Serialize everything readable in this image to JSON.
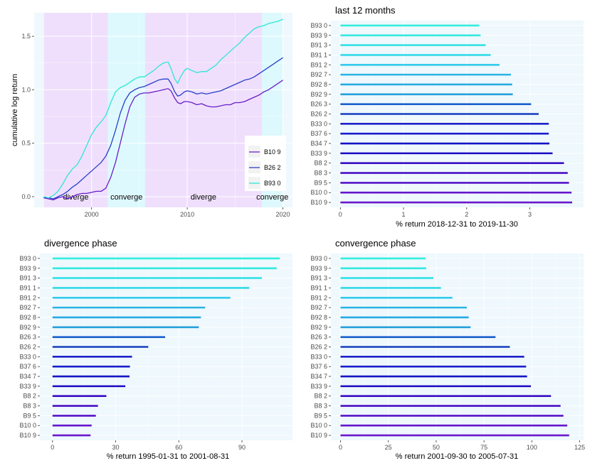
{
  "chart_data": [
    {
      "type": "line",
      "title": "",
      "xlabel": "",
      "ylabel": "cumulative log return",
      "xlim": [
        1994.0,
        2021.0
      ],
      "ylim": [
        -0.1,
        1.72
      ],
      "x_ticks": [
        2000,
        2010,
        2020
      ],
      "x_tick_labels": [
        "2000",
        "2010",
        "2020"
      ],
      "y_ticks": [
        0.0,
        0.5,
        1.0,
        1.5
      ],
      "y_tick_labels": [
        "0.0",
        "0.5",
        "1.0",
        "1.5"
      ],
      "phases": [
        {
          "label": "diverge",
          "start": 1995.0,
          "end": 2001.7,
          "color": "#efdffc"
        },
        {
          "label": "converge",
          "start": 2001.7,
          "end": 2005.6,
          "color": "#ddf9fd"
        },
        {
          "label": "diverge",
          "start": 2005.6,
          "end": 2017.8,
          "color": "#efdffc"
        },
        {
          "label": "converge",
          "start": 2017.8,
          "end": 2020.0,
          "color": "#ddf9fd"
        }
      ],
      "legend_position": "bottom-right",
      "series": [
        {
          "name": "B10 9",
          "color": "#6a1fc9",
          "x": [
            1995.0,
            1995.5,
            1996.0,
            1996.5,
            1997.0,
            1997.5,
            1998.0,
            1998.5,
            1999.0,
            1999.5,
            2000.0,
            2000.5,
            2001.0,
            2001.5,
            2002.0,
            2002.5,
            2003.0,
            2003.5,
            2004.0,
            2004.5,
            2005.0,
            2005.5,
            2006.0,
            2006.5,
            2007.0,
            2007.5,
            2008.0,
            2008.3,
            2008.7,
            2009.0,
            2009.3,
            2009.7,
            2010.0,
            2010.5,
            2011.0,
            2011.5,
            2012.0,
            2012.5,
            2013.0,
            2013.5,
            2014.0,
            2014.5,
            2015.0,
            2015.5,
            2016.0,
            2016.5,
            2017.0,
            2017.5,
            2018.0,
            2018.5,
            2019.0,
            2019.5,
            2020.0
          ],
          "y": [
            -0.01,
            -0.02,
            -0.03,
            -0.01,
            0.0,
            -0.02,
            0.0,
            0.02,
            0.03,
            0.03,
            0.04,
            0.05,
            0.05,
            0.08,
            0.18,
            0.32,
            0.5,
            0.68,
            0.84,
            0.93,
            0.96,
            0.97,
            0.97,
            0.98,
            0.99,
            1.0,
            1.01,
            0.99,
            0.92,
            0.88,
            0.87,
            0.89,
            0.89,
            0.88,
            0.86,
            0.87,
            0.85,
            0.84,
            0.84,
            0.85,
            0.86,
            0.86,
            0.88,
            0.88,
            0.89,
            0.91,
            0.93,
            0.95,
            0.98,
            1.0,
            1.03,
            1.06,
            1.09
          ]
        },
        {
          "name": "B26 2",
          "color": "#2940c8",
          "x": [
            1995.0,
            1995.5,
            1996.0,
            1996.5,
            1997.0,
            1997.5,
            1998.0,
            1998.5,
            1999.0,
            1999.5,
            2000.0,
            2000.5,
            2001.0,
            2001.5,
            2002.0,
            2002.5,
            2003.0,
            2003.5,
            2004.0,
            2004.5,
            2005.0,
            2005.5,
            2006.0,
            2006.5,
            2007.0,
            2007.5,
            2008.0,
            2008.3,
            2008.7,
            2009.0,
            2009.3,
            2009.7,
            2010.0,
            2010.5,
            2011.0,
            2011.5,
            2012.0,
            2012.5,
            2013.0,
            2013.5,
            2014.0,
            2014.5,
            2015.0,
            2015.5,
            2016.0,
            2016.5,
            2017.0,
            2017.5,
            2018.0,
            2018.5,
            2019.0,
            2019.5,
            2020.0
          ],
          "y": [
            -0.01,
            -0.01,
            -0.02,
            0.0,
            0.02,
            0.05,
            0.09,
            0.12,
            0.16,
            0.2,
            0.24,
            0.28,
            0.32,
            0.38,
            0.48,
            0.62,
            0.78,
            0.9,
            0.97,
            1.0,
            1.02,
            1.03,
            1.05,
            1.07,
            1.09,
            1.1,
            1.1,
            1.06,
            0.98,
            0.94,
            0.95,
            0.98,
            0.99,
            0.98,
            0.96,
            0.97,
            0.96,
            0.97,
            0.98,
            0.99,
            1.01,
            1.03,
            1.05,
            1.07,
            1.09,
            1.1,
            1.12,
            1.15,
            1.18,
            1.21,
            1.24,
            1.27,
            1.3
          ]
        },
        {
          "name": "B93 0",
          "color": "#2ee6d6",
          "x": [
            1995.0,
            1995.5,
            1996.0,
            1996.5,
            1997.0,
            1997.5,
            1998.0,
            1998.5,
            1999.0,
            1999.5,
            2000.0,
            2000.5,
            2001.0,
            2001.5,
            2002.0,
            2002.5,
            2003.0,
            2003.5,
            2004.0,
            2004.5,
            2005.0,
            2005.5,
            2006.0,
            2006.5,
            2007.0,
            2007.5,
            2008.0,
            2008.3,
            2008.7,
            2009.0,
            2009.3,
            2009.7,
            2010.0,
            2010.5,
            2011.0,
            2011.5,
            2012.0,
            2012.5,
            2013.0,
            2013.5,
            2014.0,
            2014.5,
            2015.0,
            2015.5,
            2016.0,
            2016.5,
            2017.0,
            2017.5,
            2018.0,
            2018.5,
            2019.0,
            2019.5,
            2020.0
          ],
          "y": [
            0.0,
            -0.01,
            0.01,
            0.05,
            0.12,
            0.2,
            0.26,
            0.3,
            0.38,
            0.48,
            0.58,
            0.65,
            0.7,
            0.76,
            0.88,
            0.98,
            1.02,
            1.04,
            1.07,
            1.1,
            1.12,
            1.12,
            1.15,
            1.18,
            1.22,
            1.25,
            1.26,
            1.2,
            1.1,
            1.06,
            1.12,
            1.18,
            1.2,
            1.18,
            1.16,
            1.17,
            1.17,
            1.2,
            1.23,
            1.28,
            1.32,
            1.36,
            1.4,
            1.44,
            1.49,
            1.53,
            1.57,
            1.59,
            1.6,
            1.62,
            1.63,
            1.64,
            1.66
          ]
        }
      ]
    },
    {
      "type": "bar",
      "orientation": "horizontal",
      "title": "last 12 months",
      "xlabel": "% return 2018-12-31 to 2019-11-30",
      "xlim": [
        -0.15,
        3.85
      ],
      "x_ticks": [
        0,
        1,
        2,
        3
      ],
      "x_tick_labels": [
        "0",
        "1",
        "2",
        "3"
      ],
      "categories": [
        "B93 0",
        "B93 9",
        "B91 3",
        "B91 1",
        "B91 2",
        "B92 7",
        "B92 8",
        "B92 9",
        "B26 3",
        "B26 2",
        "B33 0",
        "B37 6",
        "B34 7",
        "B33 9",
        "B8 2",
        "B8 3",
        "B9 5",
        "B10 0",
        "B10 9"
      ],
      "values": [
        2.2,
        2.22,
        2.3,
        2.38,
        2.52,
        2.7,
        2.72,
        2.73,
        3.02,
        3.14,
        3.3,
        3.3,
        3.31,
        3.36,
        3.54,
        3.6,
        3.62,
        3.66,
        3.67
      ],
      "colors": [
        "#33eedd",
        "#33eadf",
        "#33e2e6",
        "#33daea",
        "#32ccec",
        "#2ab4e4",
        "#27aae0",
        "#259fdc",
        "#1a60cc",
        "#153ebd",
        "#1c22c8",
        "#1a1ecc",
        "#1514c4",
        "#1a0ac0",
        "#3a0ec2",
        "#4a10c4",
        "#5814c8",
        "#6616cc",
        "#6a18cc"
      ]
    },
    {
      "type": "bar",
      "orientation": "horizontal",
      "title": "divergence phase",
      "xlabel": "% return 1995-01-31 to 2001-08-31",
      "xlim": [
        -6,
        114
      ],
      "x_ticks": [
        0,
        30,
        60,
        90
      ],
      "x_tick_labels": [
        "0",
        "30",
        "60",
        "90"
      ],
      "categories": [
        "B93 0",
        "B93 9",
        "B91 3",
        "B91 1",
        "B91 2",
        "B92 7",
        "B92 8",
        "B92 9",
        "B26 3",
        "B26 2",
        "B33 0",
        "B37 6",
        "B34 7",
        "B33 9",
        "B8 2",
        "B8 3",
        "B9 5",
        "B10 0",
        "B10 9"
      ],
      "values": [
        108,
        106.5,
        99.5,
        93.5,
        84.5,
        72.5,
        70.5,
        69.5,
        53.5,
        45.5,
        37.8,
        36.8,
        36.6,
        34.6,
        25.6,
        21.6,
        20.6,
        18.6,
        18.1
      ],
      "colors": [
        "#33eedd",
        "#33eadf",
        "#33e2e6",
        "#33daea",
        "#32ccec",
        "#2ab4e4",
        "#27aae0",
        "#259fdc",
        "#1a60cc",
        "#153ebd",
        "#1c22c8",
        "#1a1ecc",
        "#1514c4",
        "#1a0ac0",
        "#3a0ec2",
        "#4a10c4",
        "#5814c8",
        "#6616cc",
        "#6a18cc"
      ]
    },
    {
      "type": "bar",
      "orientation": "horizontal",
      "title": "convergence phase",
      "xlabel": "% return 2001-09-30 to 2005-07-31",
      "xlim": [
        -5,
        127
      ],
      "x_ticks": [
        0,
        25,
        50,
        75,
        100,
        125
      ],
      "x_tick_labels": [
        "0",
        "25",
        "50",
        "75",
        "100",
        "125"
      ],
      "categories": [
        "B93 0",
        "B93 9",
        "B91 3",
        "B91 1",
        "B91 2",
        "B92 7",
        "B92 8",
        "B92 9",
        "B26 3",
        "B26 2",
        "B33 0",
        "B37 6",
        "B34 7",
        "B33 9",
        "B8 2",
        "B8 3",
        "B9 5",
        "B10 0",
        "B10 9"
      ],
      "values": [
        44.5,
        44.8,
        48.5,
        52.5,
        58.5,
        66,
        67,
        68,
        81,
        88.5,
        96,
        97,
        97.5,
        99.5,
        110,
        115,
        116.5,
        118.5,
        119.5
      ],
      "colors": [
        "#33eedd",
        "#33eadf",
        "#33e2e6",
        "#33daea",
        "#32ccec",
        "#2ab4e4",
        "#27aae0",
        "#259fdc",
        "#1a60cc",
        "#153ebd",
        "#1c22c8",
        "#1a1ecc",
        "#1514c4",
        "#1a0ac0",
        "#3a0ec2",
        "#4a10c4",
        "#5814c8",
        "#6616cc",
        "#6a18cc"
      ]
    }
  ]
}
